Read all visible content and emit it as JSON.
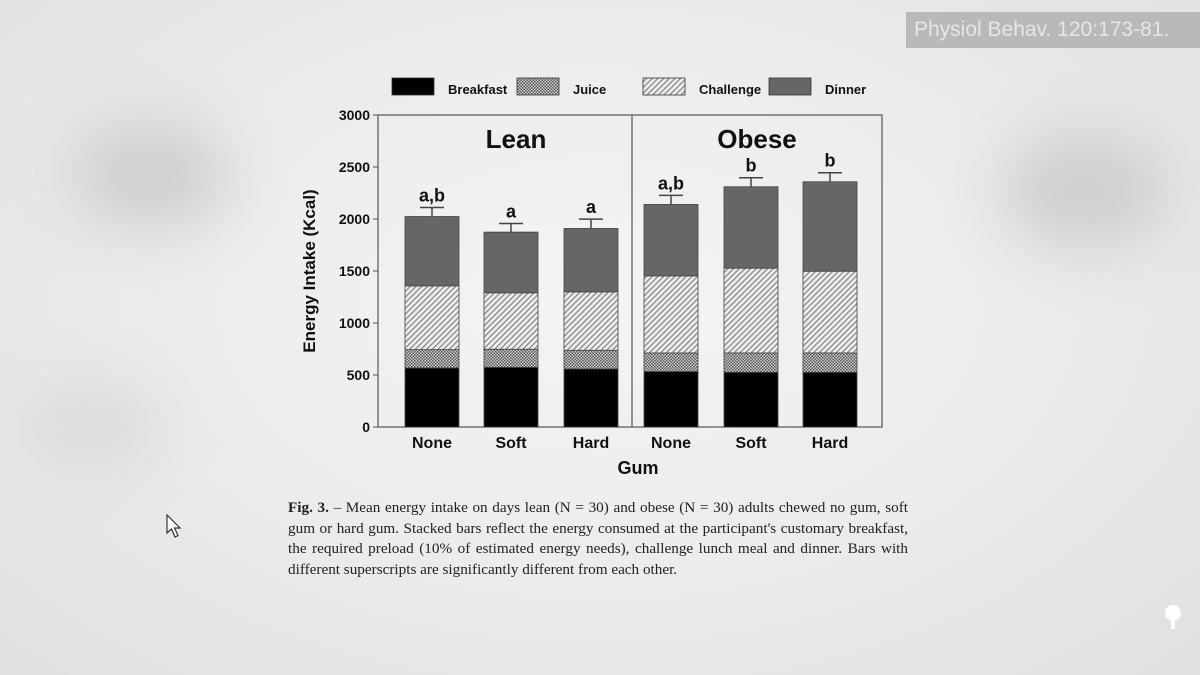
{
  "citation": "Physiol Behav. 120:173-81.",
  "caption": {
    "label": "Fig. 3.",
    "text": " – Mean energy intake on days lean (N = 30) and obese (N = 30) adults chewed no gum, soft gum or hard gum. Stacked bars reflect the energy consumed at the participant's customary breakfast, the required preload (10% of estimated energy needs), challenge lunch meal and dinner. Bars with different superscripts are significantly different from each other."
  },
  "chart_data": {
    "type": "bar",
    "stacked": true,
    "ylabel": "Energy Intake (Kcal)",
    "xlabel": "Gum",
    "ylim": [
      0,
      3000
    ],
    "yticks": [
      0,
      500,
      1000,
      1500,
      2000,
      2500,
      3000
    ],
    "legend_position": "top",
    "panels": [
      "Lean",
      "Obese"
    ],
    "categories": [
      "None",
      "Soft",
      "Hard",
      "None",
      "Soft",
      "Hard"
    ],
    "panel_of_category": [
      "Lean",
      "Lean",
      "Lean",
      "Obese",
      "Obese",
      "Obese"
    ],
    "series": [
      {
        "name": "Breakfast",
        "pattern": "solid-black",
        "values": [
          568,
          574,
          558,
          533,
          526,
          526
        ]
      },
      {
        "name": "Juice",
        "pattern": "crosshatch",
        "values": [
          176,
          174,
          180,
          179,
          186,
          186
        ]
      },
      {
        "name": "Challenge",
        "pattern": "diagonal-hatch",
        "values": [
          613,
          542,
          561,
          741,
          815,
          786
        ]
      },
      {
        "name": "Dinner",
        "pattern": "solid-dark-gray",
        "values": [
          667,
          584,
          610,
          687,
          783,
          860
        ]
      }
    ],
    "error_bars_plus": [
      87,
      83,
      90,
      87,
      87,
      87
    ],
    "significance_labels": [
      "a,b",
      "a",
      "a",
      "a,b",
      "b",
      "b"
    ],
    "colors": {
      "breakfast": "#000000",
      "dinner": "#666666",
      "hatch": "#8a8a8a"
    }
  }
}
